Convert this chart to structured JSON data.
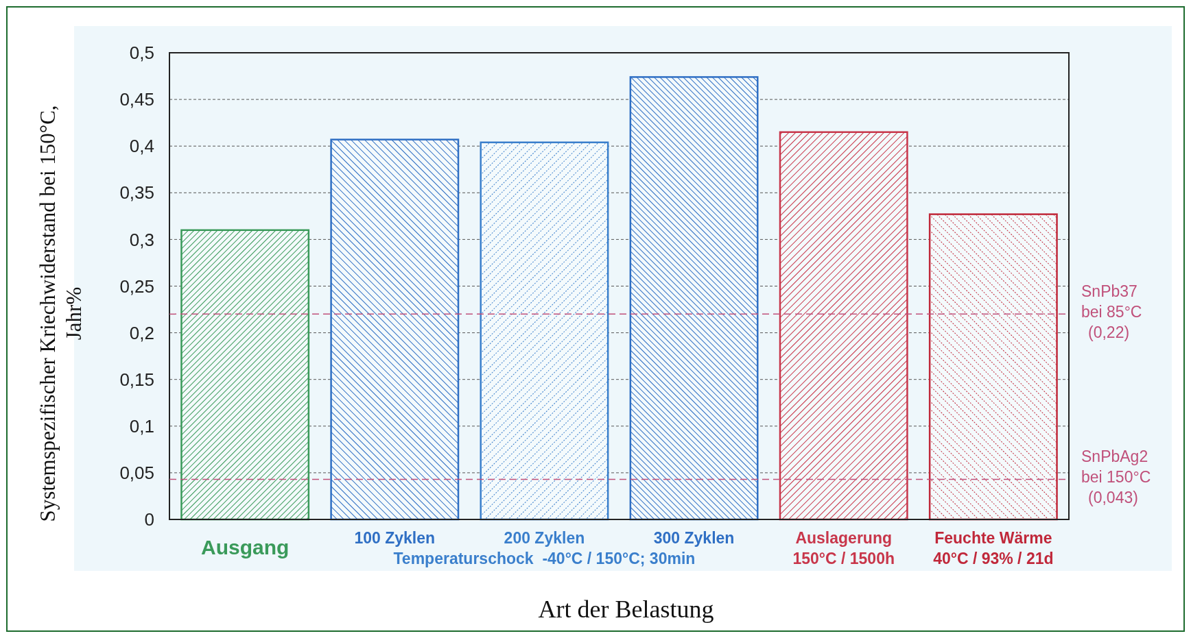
{
  "chart_data": {
    "type": "bar",
    "categories": [
      "Ausgang",
      "100 Zyklen",
      "200 Zyklen",
      "300 Zyklen",
      "Auslagerung\n150°C / 1500h",
      "Feuchte Wärme\n40°C / 93% / 21d"
    ],
    "values": [
      0.31,
      0.407,
      0.404,
      0.474,
      0.415,
      0.327
    ],
    "colors": [
      "#3a9a5a",
      "#2f6fc4",
      "#3a7fcc",
      "#2f6fc4",
      "#c8364a",
      "#c0283a"
    ],
    "ylim": [
      0,
      0.5
    ],
    "yticks": [
      0,
      {
        "value": 0.05,
        "label": "0,05"
      },
      {
        "value": 0.1,
        "label": "0,1"
      },
      {
        "value": 0.15,
        "label": "0,15"
      },
      {
        "value": 0.2,
        "label": "0,2"
      },
      {
        "value": 0.25,
        "label": "0,25"
      },
      {
        "value": 0.3,
        "label": "0,3"
      },
      {
        "value": 0.35,
        "label": "0,35"
      },
      {
        "value": 0.4,
        "label": "0,4"
      },
      {
        "value": 0.45,
        "label": "0,45"
      },
      {
        "value": 0.5,
        "label": "0,5"
      }
    ],
    "grid": "y",
    "ylabel": "Systemspezifischer Kriechwiderstand bei 150°C,\nJahr%",
    "xlabel": "Art der Belastung",
    "annotations": [
      "Temperaturschock  -40°C / 150°C; 30min"
    ],
    "ref_lines": [
      {
        "axis": "y",
        "value": 0.22,
        "label": "SnPb37\nbei 85°C\n(0,22)",
        "color": "#c0507a",
        "line_style": "dashed"
      },
      {
        "axis": "y",
        "value": 0.043,
        "label": "SnPbAg2\nbei 150°C\n(0,043)",
        "color": "#c0507a",
        "line_style": "dashed"
      }
    ]
  }
}
